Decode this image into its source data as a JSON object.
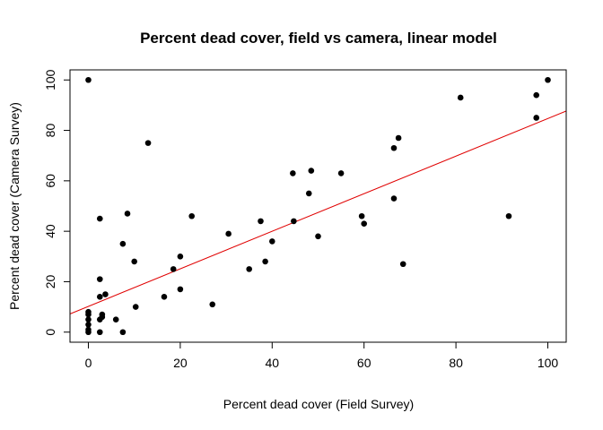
{
  "chart_data": {
    "type": "scatter",
    "title": "Percent dead cover, field vs camera, linear model",
    "xlabel": "Percent dead cover (Field Survey)",
    "ylabel": "Percent dead cover (Camera Survey)",
    "xlim": [
      -4,
      104
    ],
    "ylim": [
      -4,
      104
    ],
    "xticks": [
      0,
      20,
      40,
      60,
      80,
      100
    ],
    "yticks": [
      0,
      20,
      40,
      60,
      80,
      100
    ],
    "xtick_labels": [
      "0",
      "20",
      "40",
      "60",
      "80",
      "100"
    ],
    "ytick_labels": [
      "0",
      "20",
      "40",
      "60",
      "80",
      "100"
    ],
    "grid": false,
    "point_color": "#000000",
    "line_color": "#e00000",
    "points": [
      {
        "x": 0,
        "y": 100
      },
      {
        "x": 0,
        "y": 8
      },
      {
        "x": 0,
        "y": 7
      },
      {
        "x": 0,
        "y": 5
      },
      {
        "x": 0,
        "y": 3
      },
      {
        "x": 0,
        "y": 1
      },
      {
        "x": 0,
        "y": 0
      },
      {
        "x": 2.5,
        "y": 45
      },
      {
        "x": 2.5,
        "y": 21
      },
      {
        "x": 2.5,
        "y": 14
      },
      {
        "x": 2.5,
        "y": 5
      },
      {
        "x": 2.5,
        "y": 0
      },
      {
        "x": 3,
        "y": 7
      },
      {
        "x": 3,
        "y": 6
      },
      {
        "x": 3.7,
        "y": 15
      },
      {
        "x": 6,
        "y": 5
      },
      {
        "x": 7.5,
        "y": 35
      },
      {
        "x": 7.5,
        "y": 0
      },
      {
        "x": 8.5,
        "y": 47
      },
      {
        "x": 10,
        "y": 28
      },
      {
        "x": 10.3,
        "y": 10
      },
      {
        "x": 13,
        "y": 75
      },
      {
        "x": 16.5,
        "y": 14
      },
      {
        "x": 18.5,
        "y": 25
      },
      {
        "x": 20,
        "y": 30
      },
      {
        "x": 20,
        "y": 17
      },
      {
        "x": 22.5,
        "y": 46
      },
      {
        "x": 27,
        "y": 11
      },
      {
        "x": 30.5,
        "y": 39
      },
      {
        "x": 35,
        "y": 25
      },
      {
        "x": 37.5,
        "y": 44
      },
      {
        "x": 38.5,
        "y": 28
      },
      {
        "x": 40,
        "y": 36
      },
      {
        "x": 44.5,
        "y": 63
      },
      {
        "x": 44.7,
        "y": 44
      },
      {
        "x": 48,
        "y": 55
      },
      {
        "x": 48.5,
        "y": 64
      },
      {
        "x": 50,
        "y": 38
      },
      {
        "x": 55,
        "y": 63
      },
      {
        "x": 59.5,
        "y": 46
      },
      {
        "x": 60,
        "y": 43
      },
      {
        "x": 66.5,
        "y": 73
      },
      {
        "x": 66.5,
        "y": 53
      },
      {
        "x": 67.5,
        "y": 77
      },
      {
        "x": 68.5,
        "y": 27
      },
      {
        "x": 81,
        "y": 93
      },
      {
        "x": 91.5,
        "y": 46
      },
      {
        "x": 97.5,
        "y": 94
      },
      {
        "x": 97.5,
        "y": 85
      },
      {
        "x": 100,
        "y": 100
      }
    ],
    "fit_line": {
      "intercept": 10.2,
      "slope": 0.745
    }
  }
}
